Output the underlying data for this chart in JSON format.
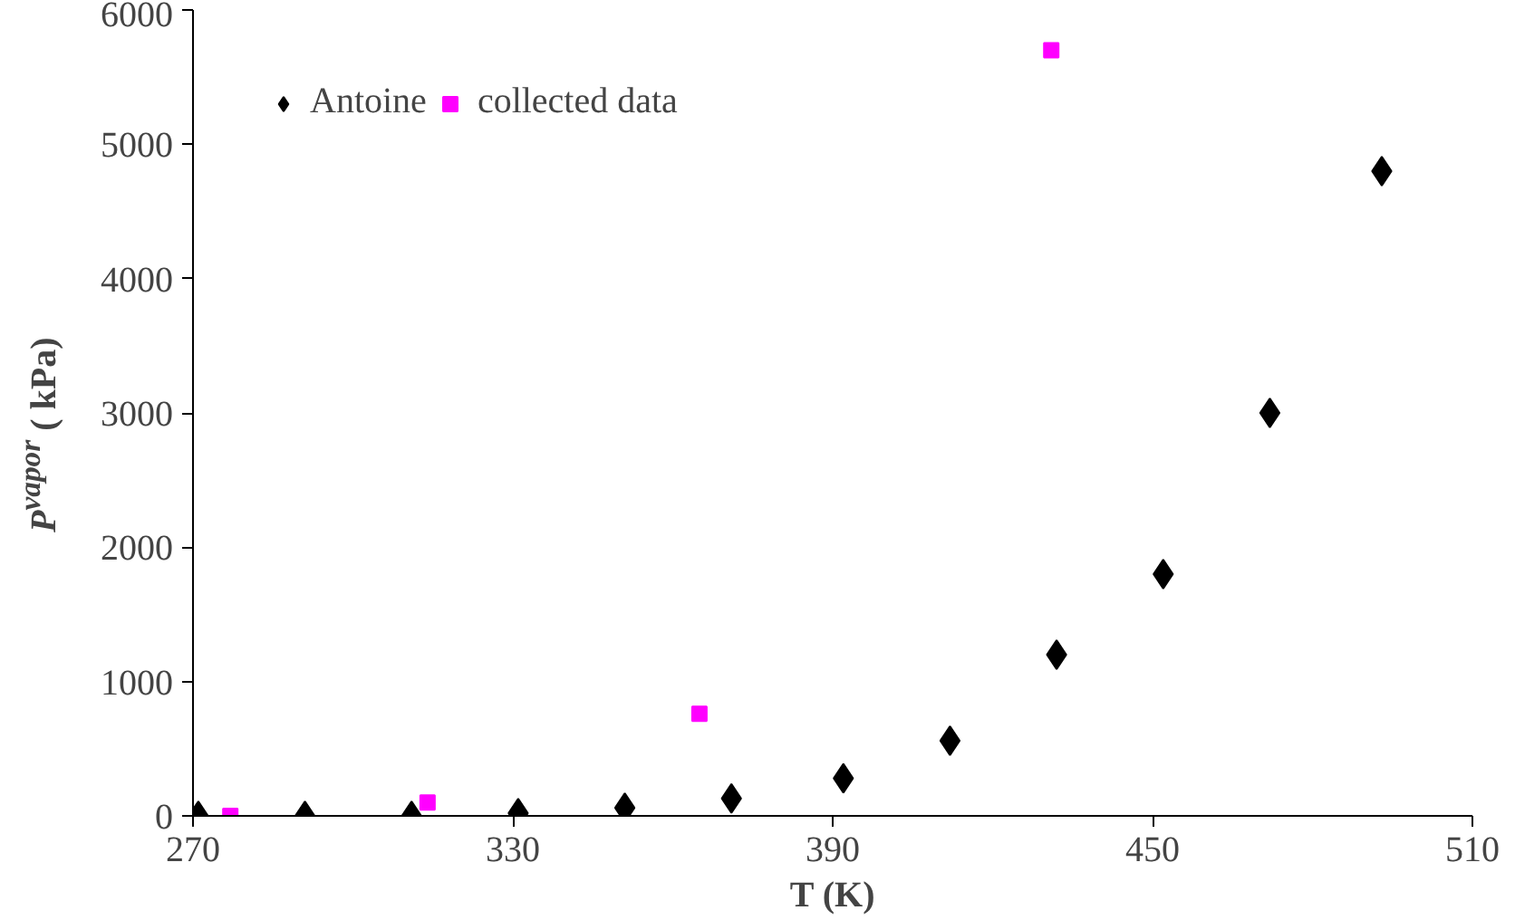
{
  "chart_data": {
    "type": "scatter",
    "xlabel": "T (K)",
    "ylabel": "P$^{vapor}$ ( kPa)",
    "xlim": [
      270,
      510
    ],
    "xticks": [
      270,
      330,
      390,
      450,
      510
    ],
    "ylim": [
      0,
      6000
    ],
    "yticks": [
      0,
      1000,
      2000,
      3000,
      4000,
      5000,
      6000
    ],
    "grid": false,
    "legend": "top left",
    "series": [
      {
        "name": "Antoine",
        "color": "#000000",
        "marker": "diamond",
        "x": [
          271,
          291,
          311,
          331,
          351,
          371,
          392,
          412,
          432,
          452,
          472,
          493
        ],
        "values": [
          0,
          0,
          0,
          20,
          60,
          130,
          280,
          560,
          1200,
          1800,
          3000,
          4800
        ]
      },
      {
        "name": "collected data",
        "color": "#ff00ff",
        "marker": "square",
        "x": [
          277,
          314,
          365,
          431
        ],
        "values": [
          0,
          100,
          760,
          5700
        ]
      }
    ]
  }
}
